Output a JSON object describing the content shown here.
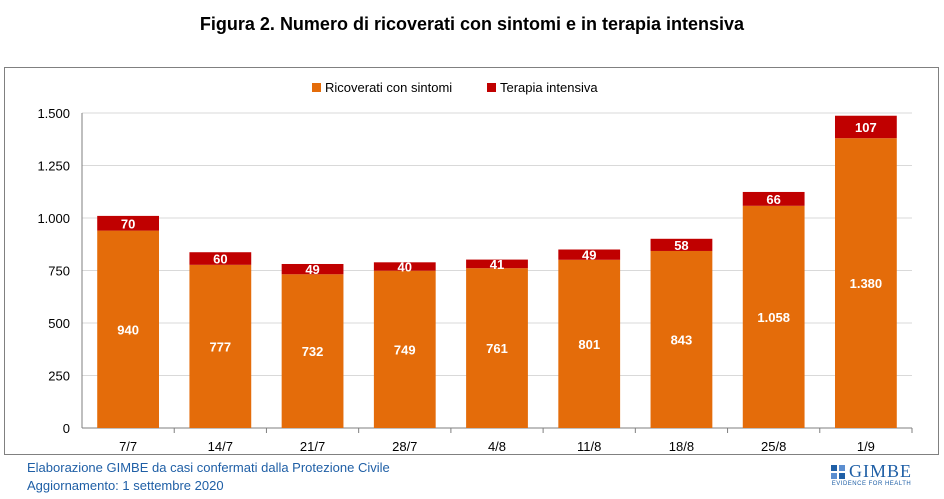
{
  "title": "Figura 2. Numero di ricoverati con sintomi e in terapia intensiva",
  "footer": {
    "line1": "Elaborazione GIMBE da casi confermati dalla Protezione Civile",
    "line2": "Aggiornamento: 1 settembre 2020"
  },
  "logo": {
    "name": "GIMBE",
    "tagline": "EVIDENCE FOR HEALTH"
  },
  "colors": {
    "ricoverati": "#E46C0A",
    "terapia": "#C00000",
    "title": "#000000",
    "footer": "#1F5FA6"
  },
  "chart_data": {
    "type": "bar",
    "stacked": true,
    "categories": [
      "7/7",
      "14/7",
      "21/7",
      "28/7",
      "4/8",
      "11/8",
      "18/8",
      "25/8",
      "1/9"
    ],
    "series": [
      {
        "name": "Ricoverati con sintomi",
        "values": [
          940,
          777,
          732,
          749,
          761,
          801,
          843,
          1058,
          1380
        ],
        "labels": [
          "940",
          "777",
          "732",
          "749",
          "761",
          "801",
          "843",
          "1.058",
          "1.380"
        ]
      },
      {
        "name": "Terapia intensiva",
        "values": [
          70,
          60,
          49,
          40,
          41,
          49,
          58,
          66,
          107
        ],
        "labels": [
          "70",
          "60",
          "49",
          "40",
          "41",
          "49",
          "58",
          "66",
          "107"
        ]
      }
    ],
    "ylim": [
      0,
      1500
    ],
    "yticks": [
      0,
      250,
      500,
      750,
      1000,
      1250,
      1500
    ],
    "ytick_labels": [
      "0",
      "250",
      "500",
      "750",
      "1.000",
      "1.250",
      "1.500"
    ],
    "grid": true,
    "legend": "top"
  }
}
